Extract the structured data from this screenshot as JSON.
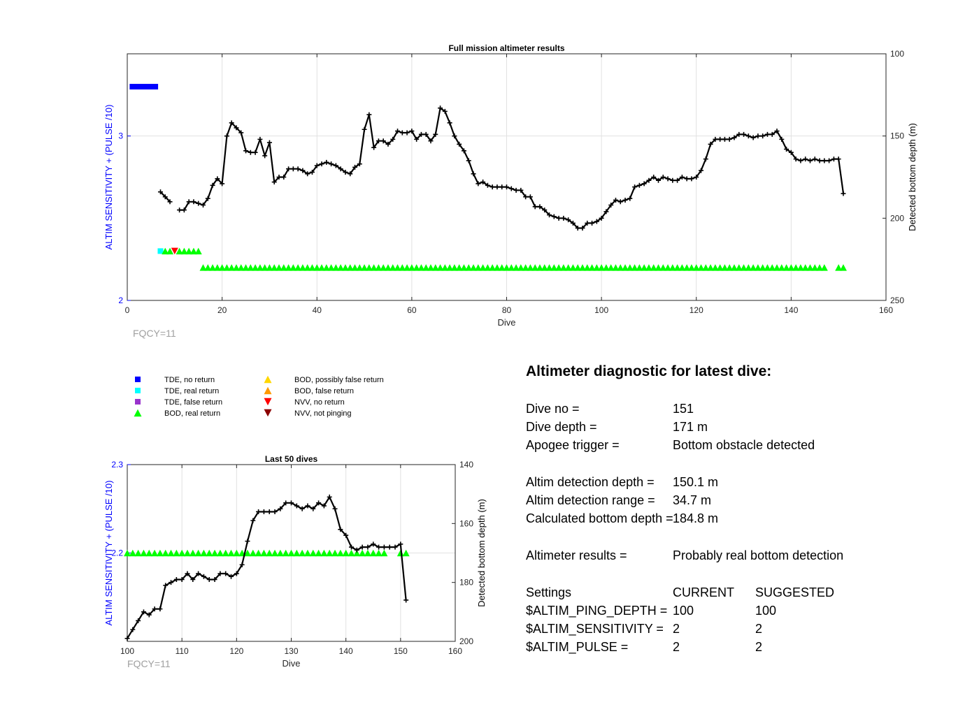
{
  "colors": {
    "tde_no_return": "#0000ff",
    "tde_real_return": "#00ffff",
    "tde_false_return": "#9933cc",
    "bod_real_return": "#00ff00",
    "bod_possibly_false": "#ffd700",
    "bod_false": "#ff9900",
    "nvv_no_return": "#ff0000",
    "nvv_not_pinging": "#8b0000",
    "depth_line": "#000000",
    "left_axis": "#0000ff",
    "fqcy_text": "#a0a0a0"
  },
  "legend": {
    "items": [
      {
        "label": "TDE, no return",
        "marker": "square",
        "color": "#0000ff"
      },
      {
        "label": "TDE, real return",
        "marker": "square",
        "color": "#00ffff"
      },
      {
        "label": "TDE, false return",
        "marker": "square",
        "color": "#9933cc"
      },
      {
        "label": "BOD, real return",
        "marker": "triangle-up",
        "color": "#00ff00"
      },
      {
        "label": "BOD, possibly false return",
        "marker": "triangle-up",
        "color": "#ffd700"
      },
      {
        "label": "BOD, false return",
        "marker": "triangle-up",
        "color": "#ff9900"
      },
      {
        "label": "NVV, no return",
        "marker": "triangle-down",
        "color": "#ff0000"
      },
      {
        "label": "NVV, not pinging",
        "marker": "triangle-down",
        "color": "#8b0000"
      }
    ]
  },
  "diagnostic": {
    "title": "Altimeter diagnostic for latest dive:",
    "dive_no_label": "Dive no =",
    "dive_no_value": "151",
    "dive_depth_label": "Dive depth =",
    "dive_depth_value": "171 m",
    "apogee_label": "Apogee trigger =",
    "apogee_value": "Bottom obstacle detected",
    "altim_det_depth_label": "Altim detection depth =",
    "altim_det_depth_value": "150.1 m",
    "altim_det_range_label": "Altim detection range =",
    "altim_det_range_value": "34.7 m",
    "calc_bottom_label": "Calculated bottom depth =",
    "calc_bottom_value": "184.8 m",
    "results_label": "Altimeter results =",
    "results_value": "Probably real bottom detection",
    "settings_label": "Settings",
    "current_label": "CURRENT",
    "suggested_label": "SUGGESTED",
    "ping_depth_label": "$ALTIM_PING_DEPTH =",
    "ping_depth_current": "100",
    "ping_depth_suggested": "100",
    "sensitivity_label": "$ALTIM_SENSITIVITY =",
    "sensitivity_current": "2",
    "sensitivity_suggested": "2",
    "pulse_label": "$ALTIM_PULSE =",
    "pulse_current": "2",
    "pulse_suggested": "2"
  },
  "chart_data": [
    {
      "type": "line",
      "title": "Full mission altimeter results",
      "xlabel": "Dive",
      "ylabel_left": "ALTIM SENSITIVITY + (PULSE /10)",
      "ylabel_right": "Detected bottom depth (m)",
      "footnote": "FQCY=11",
      "xlim": [
        0,
        160
      ],
      "xticks": [
        0,
        20,
        40,
        60,
        80,
        100,
        120,
        140,
        160
      ],
      "ylim_left": [
        2,
        3.5
      ],
      "yticks_left": [
        2,
        3
      ],
      "ylim_right": [
        100,
        250
      ],
      "yticks_right": [
        100,
        150,
        200,
        250
      ],
      "right_axis_reversed": true,
      "grid": true,
      "depth_series": {
        "name": "Detected bottom depth",
        "segments": [
          {
            "x": [
              7,
              8,
              9
            ],
            "y": [
              184,
              187,
              190
            ]
          },
          {
            "x": [
              11,
              12,
              13,
              14,
              15,
              16,
              17,
              18,
              19,
              20,
              21,
              22,
              23,
              24,
              25,
              26,
              27,
              28,
              29,
              30,
              31,
              32,
              33,
              34,
              35,
              36,
              37,
              38,
              39,
              40,
              41,
              42,
              43,
              44,
              45,
              46,
              47,
              48,
              49,
              50,
              51,
              52,
              53,
              54,
              55,
              56,
              57,
              58,
              59,
              60,
              61,
              62,
              63,
              64,
              65,
              66,
              67,
              68,
              69,
              70,
              71,
              72,
              73,
              74,
              75,
              76,
              77,
              78,
              79,
              80,
              81,
              82,
              83,
              84,
              85,
              86,
              87,
              88,
              89,
              90,
              91,
              92,
              93,
              94,
              95,
              96,
              97,
              98,
              99,
              100,
              101,
              102,
              103,
              104,
              105,
              106,
              107,
              108,
              109,
              110,
              111,
              112,
              113,
              114,
              115,
              116,
              117,
              118,
              119,
              120,
              121,
              122,
              123,
              124,
              125,
              126,
              127,
              128,
              129,
              130,
              131,
              132,
              133,
              134,
              135,
              136,
              137,
              138,
              139,
              140,
              141,
              142,
              143,
              144,
              145,
              146,
              147,
              148,
              149,
              150,
              151
            ],
            "y": [
              195,
              195,
              190,
              190,
              191,
              192,
              188,
              180,
              176,
              179,
              150,
              142,
              145,
              148,
              159,
              160,
              160,
              152,
              162,
              154,
              178,
              175,
              175,
              170,
              170,
              170,
              171,
              173,
              172,
              168,
              167,
              166,
              167,
              168,
              170,
              172,
              173,
              169,
              167,
              146,
              137,
              157,
              153,
              153,
              155,
              152,
              147,
              148,
              148,
              147,
              152,
              149,
              149,
              153,
              149,
              133,
              135,
              142,
              150,
              155,
              159,
              165,
              173,
              179,
              178,
              180,
              181,
              181,
              181,
              181,
              182,
              183,
              183,
              187,
              187,
              193,
              193,
              195,
              198,
              199,
              200,
              200,
              201,
              203,
              206,
              206,
              203,
              203,
              202,
              200,
              196,
              192,
              189,
              190,
              189,
              188,
              181,
              180,
              179,
              177,
              175,
              177,
              175,
              176,
              177,
              177,
              175,
              176,
              176,
              175,
              171,
              164,
              155,
              152,
              152,
              152,
              152,
              151,
              149,
              149,
              150,
              151,
              150,
              150,
              149,
              149,
              147,
              152,
              158,
              160,
              164,
              165,
              164,
              165,
              164,
              165,
              165,
              165,
              164,
              164,
              185
            ]
          }
        ]
      },
      "tde_no_return": {
        "x": [
          0.5,
          6.5
        ],
        "y": 3.3
      },
      "tde_real_return": {
        "x": [
          7
        ],
        "y": 2.3
      },
      "nvv_no_return": {
        "x": [
          10
        ],
        "y": 2.3
      },
      "bod_real_return_rows": [
        {
          "y": 2.3,
          "x": [
            8,
            9,
            11,
            12,
            13,
            14,
            15
          ]
        },
        {
          "y": 2.2,
          "x": [
            16,
            17,
            18,
            19,
            20,
            21,
            22,
            23,
            24,
            25,
            26,
            27,
            28,
            29,
            30,
            31,
            32,
            33,
            34,
            35,
            36,
            37,
            38,
            39,
            40,
            41,
            42,
            43,
            44,
            45,
            46,
            47,
            48,
            49,
            50,
            51,
            52,
            53,
            54,
            55,
            56,
            57,
            58,
            59,
            60,
            61,
            62,
            63,
            64,
            65,
            66,
            67,
            68,
            69,
            70,
            71,
            72,
            73,
            74,
            75,
            76,
            77,
            78,
            79,
            80,
            81,
            82,
            83,
            84,
            85,
            86,
            87,
            88,
            89,
            90,
            91,
            92,
            93,
            94,
            95,
            96,
            97,
            98,
            99,
            100,
            101,
            102,
            103,
            104,
            105,
            106,
            107,
            108,
            109,
            110,
            111,
            112,
            113,
            114,
            115,
            116,
            117,
            118,
            119,
            120,
            121,
            122,
            123,
            124,
            125,
            126,
            127,
            128,
            129,
            130,
            131,
            132,
            133,
            134,
            135,
            136,
            137,
            138,
            139,
            140,
            141,
            142,
            143,
            144,
            145,
            146,
            147,
            150,
            151
          ]
        }
      ]
    },
    {
      "type": "line",
      "title": "Last 50 dives",
      "xlabel": "Dive",
      "ylabel_left": "ALTIM SENSITIVITY + (PULSE /10)",
      "ylabel_right": "Detected bottom depth (m)",
      "footnote": "FQCY=11",
      "xlim": [
        100,
        160
      ],
      "xticks": [
        100,
        110,
        120,
        130,
        140,
        150,
        160
      ],
      "ylim_left": [
        2.1,
        2.3
      ],
      "yticks_left": [
        2.2,
        2.3
      ],
      "ylim_right": [
        140,
        200
      ],
      "yticks_right": [
        140,
        160,
        180,
        200
      ],
      "right_axis_reversed": true,
      "grid": true,
      "depth_series": {
        "name": "Detected bottom depth",
        "x": [
          100,
          101,
          102,
          103,
          104,
          105,
          106,
          107,
          108,
          109,
          110,
          111,
          112,
          113,
          114,
          115,
          116,
          117,
          118,
          119,
          120,
          121,
          122,
          123,
          124,
          125,
          126,
          127,
          128,
          129,
          130,
          131,
          132,
          133,
          134,
          135,
          136,
          137,
          138,
          139,
          140,
          141,
          142,
          143,
          144,
          145,
          146,
          147,
          148,
          149,
          150,
          151
        ],
        "y": [
          199,
          196,
          193,
          190,
          191,
          189,
          189,
          181,
          180,
          179,
          179,
          177,
          179,
          177,
          178,
          179,
          179,
          177,
          177,
          178,
          177,
          174,
          166,
          159,
          156,
          156,
          156,
          156,
          155,
          153,
          153,
          154,
          155,
          154,
          155,
          153,
          154,
          151,
          155,
          162,
          164,
          168,
          169,
          168,
          168,
          167,
          168,
          168,
          168,
          168,
          167,
          186
        ]
      },
      "bod_real_return_rows": [
        {
          "y": 2.2,
          "x": [
            100,
            101,
            102,
            103,
            104,
            105,
            106,
            107,
            108,
            109,
            110,
            111,
            112,
            113,
            114,
            115,
            116,
            117,
            118,
            119,
            120,
            121,
            122,
            123,
            124,
            125,
            126,
            127,
            128,
            129,
            130,
            131,
            132,
            133,
            134,
            135,
            136,
            137,
            138,
            139,
            140,
            141,
            142,
            143,
            144,
            145,
            146,
            147,
            150,
            151
          ]
        }
      ]
    }
  ]
}
